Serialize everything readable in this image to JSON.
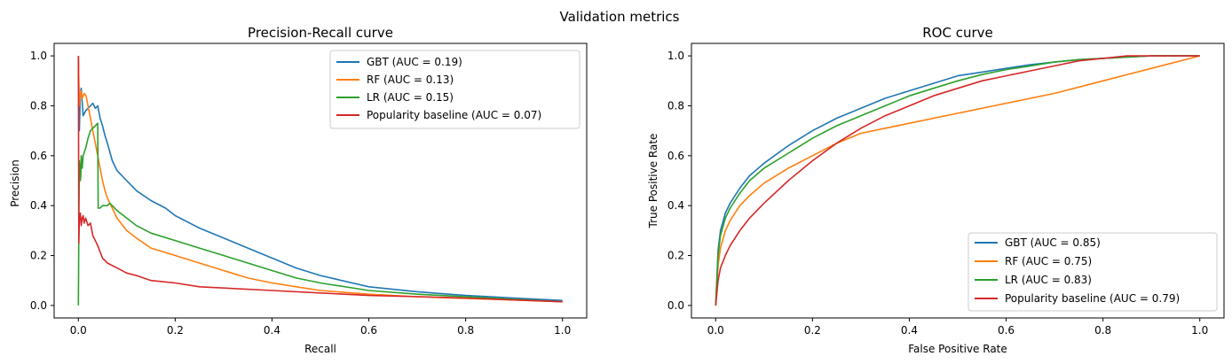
{
  "figure": {
    "title": "Validation metrics"
  },
  "chart_data": [
    {
      "type": "line",
      "title": "Precision-Recall curve",
      "xlabel": "Recall",
      "ylabel": "Precision",
      "xlim": [
        -0.05,
        1.05
      ],
      "ylim": [
        -0.05,
        1.05
      ],
      "xticks": [
        "0.0",
        "0.2",
        "0.4",
        "0.6",
        "0.8",
        "1.0"
      ],
      "yticks": [
        "0.0",
        "0.2",
        "0.4",
        "0.6",
        "0.8",
        "1.0"
      ],
      "grid": false,
      "legend_position": "upper right",
      "series": [
        {
          "name": "GBT (AUC = 0.19)",
          "color": "#1f77b4",
          "x": [
            0.0,
            0.002,
            0.004,
            0.006,
            0.01,
            0.015,
            0.02,
            0.025,
            0.03,
            0.035,
            0.04,
            0.045,
            0.05,
            0.055,
            0.06,
            0.07,
            0.08,
            0.1,
            0.12,
            0.15,
            0.18,
            0.2,
            0.25,
            0.3,
            0.35,
            0.4,
            0.45,
            0.5,
            0.6,
            0.7,
            0.8,
            0.9,
            1.0
          ],
          "y": [
            1.0,
            0.7,
            0.85,
            0.87,
            0.76,
            0.78,
            0.79,
            0.8,
            0.81,
            0.79,
            0.8,
            0.75,
            0.72,
            0.68,
            0.65,
            0.58,
            0.54,
            0.5,
            0.46,
            0.42,
            0.39,
            0.36,
            0.31,
            0.27,
            0.23,
            0.19,
            0.15,
            0.12,
            0.075,
            0.055,
            0.04,
            0.03,
            0.02
          ]
        },
        {
          "name": "RF (AUC = 0.13)",
          "color": "#ff7f0e",
          "x": [
            0.0,
            0.002,
            0.005,
            0.008,
            0.012,
            0.016,
            0.02,
            0.025,
            0.03,
            0.035,
            0.04,
            0.045,
            0.05,
            0.055,
            0.06,
            0.07,
            0.08,
            0.1,
            0.12,
            0.15,
            0.2,
            0.25,
            0.3,
            0.35,
            0.4,
            0.45,
            0.5,
            0.6,
            0.7,
            0.8,
            0.9,
            1.0
          ],
          "y": [
            1.0,
            0.8,
            0.86,
            0.83,
            0.85,
            0.84,
            0.8,
            0.75,
            0.7,
            0.65,
            0.6,
            0.55,
            0.5,
            0.46,
            0.43,
            0.39,
            0.35,
            0.3,
            0.27,
            0.23,
            0.2,
            0.17,
            0.14,
            0.11,
            0.09,
            0.075,
            0.06,
            0.045,
            0.035,
            0.028,
            0.022,
            0.015
          ]
        },
        {
          "name": "LR (AUC = 0.15)",
          "color": "#2ca02c",
          "x": [
            0.0,
            0.001,
            0.002,
            0.003,
            0.004,
            0.005,
            0.006,
            0.008,
            0.01,
            0.015,
            0.02,
            0.025,
            0.03,
            0.035,
            0.04,
            0.041,
            0.045,
            0.05,
            0.055,
            0.06,
            0.065,
            0.07,
            0.08,
            0.1,
            0.12,
            0.15,
            0.2,
            0.25,
            0.3,
            0.35,
            0.4,
            0.45,
            0.5,
            0.6,
            0.7,
            0.8,
            0.9,
            1.0
          ],
          "y": [
            0.0,
            0.3,
            0.58,
            0.55,
            0.5,
            0.52,
            0.6,
            0.55,
            0.6,
            0.63,
            0.67,
            0.7,
            0.71,
            0.72,
            0.73,
            0.39,
            0.39,
            0.4,
            0.4,
            0.4,
            0.41,
            0.4,
            0.38,
            0.35,
            0.32,
            0.29,
            0.26,
            0.23,
            0.2,
            0.17,
            0.14,
            0.11,
            0.09,
            0.06,
            0.045,
            0.035,
            0.025,
            0.015
          ]
        },
        {
          "name": "Popularity baseline (AUC = 0.07)",
          "color": "#d62728",
          "x": [
            0.0,
            0.001,
            0.002,
            0.004,
            0.006,
            0.008,
            0.01,
            0.012,
            0.015,
            0.02,
            0.025,
            0.03,
            0.04,
            0.05,
            0.06,
            0.08,
            0.1,
            0.12,
            0.15,
            0.2,
            0.25,
            0.3,
            0.4,
            0.5,
            0.6,
            0.7,
            0.8,
            0.9,
            1.0
          ],
          "y": [
            1.0,
            0.25,
            0.35,
            0.37,
            0.32,
            0.35,
            0.36,
            0.33,
            0.35,
            0.32,
            0.33,
            0.28,
            0.24,
            0.19,
            0.17,
            0.15,
            0.13,
            0.12,
            0.1,
            0.09,
            0.075,
            0.07,
            0.06,
            0.05,
            0.04,
            0.035,
            0.03,
            0.022,
            0.015
          ]
        }
      ]
    },
    {
      "type": "line",
      "title": "ROC curve",
      "xlabel": "False Positive Rate",
      "ylabel": "True Positive Rate",
      "xlim": [
        -0.05,
        1.05
      ],
      "ylim": [
        -0.05,
        1.05
      ],
      "xticks": [
        "0.0",
        "0.2",
        "0.4",
        "0.6",
        "0.8",
        "1.0"
      ],
      "yticks": [
        "0.0",
        "0.2",
        "0.4",
        "0.6",
        "0.8",
        "1.0"
      ],
      "grid": false,
      "legend_position": "lower right",
      "series": [
        {
          "name": "GBT (AUC = 0.85)",
          "color": "#1f77b4",
          "x": [
            0.0,
            0.005,
            0.01,
            0.02,
            0.03,
            0.05,
            0.07,
            0.1,
            0.15,
            0.2,
            0.25,
            0.3,
            0.35,
            0.4,
            0.45,
            0.5,
            0.55,
            0.6,
            0.65,
            0.7,
            0.75,
            0.8,
            0.85,
            0.9,
            1.0
          ],
          "y": [
            0.0,
            0.22,
            0.3,
            0.37,
            0.41,
            0.47,
            0.52,
            0.57,
            0.64,
            0.7,
            0.75,
            0.79,
            0.83,
            0.86,
            0.89,
            0.92,
            0.935,
            0.95,
            0.965,
            0.975,
            0.985,
            0.99,
            0.995,
            1.0,
            1.0
          ]
        },
        {
          "name": "RF (AUC = 0.75)",
          "color": "#ff7f0e",
          "x": [
            0.0,
            0.005,
            0.01,
            0.02,
            0.03,
            0.05,
            0.07,
            0.1,
            0.15,
            0.2,
            0.25,
            0.3,
            0.4,
            0.5,
            0.6,
            0.7,
            0.8,
            0.9,
            1.0
          ],
          "y": [
            0.0,
            0.16,
            0.23,
            0.3,
            0.34,
            0.4,
            0.44,
            0.49,
            0.55,
            0.6,
            0.65,
            0.69,
            0.73,
            0.77,
            0.81,
            0.85,
            0.9,
            0.95,
            1.0
          ]
        },
        {
          "name": "LR (AUC = 0.83)",
          "color": "#2ca02c",
          "x": [
            0.0,
            0.005,
            0.01,
            0.02,
            0.03,
            0.05,
            0.07,
            0.1,
            0.15,
            0.2,
            0.25,
            0.3,
            0.35,
            0.4,
            0.45,
            0.5,
            0.55,
            0.6,
            0.65,
            0.7,
            0.75,
            0.8,
            0.85,
            0.9,
            1.0
          ],
          "y": [
            0.0,
            0.2,
            0.28,
            0.35,
            0.39,
            0.45,
            0.5,
            0.55,
            0.61,
            0.67,
            0.72,
            0.76,
            0.8,
            0.84,
            0.87,
            0.9,
            0.925,
            0.945,
            0.96,
            0.975,
            0.985,
            0.99,
            0.995,
            1.0,
            1.0
          ]
        },
        {
          "name": "Popularity baseline (AUC = 0.79)",
          "color": "#d62728",
          "x": [
            0.0,
            0.005,
            0.01,
            0.02,
            0.03,
            0.05,
            0.07,
            0.1,
            0.15,
            0.2,
            0.25,
            0.3,
            0.35,
            0.4,
            0.45,
            0.5,
            0.55,
            0.6,
            0.65,
            0.7,
            0.75,
            0.8,
            0.85,
            0.9,
            1.0
          ],
          "y": [
            0.0,
            0.1,
            0.15,
            0.2,
            0.24,
            0.3,
            0.35,
            0.41,
            0.5,
            0.58,
            0.65,
            0.71,
            0.76,
            0.8,
            0.84,
            0.87,
            0.9,
            0.92,
            0.94,
            0.96,
            0.98,
            0.99,
            1.0,
            1.0,
            1.0
          ]
        }
      ]
    }
  ]
}
